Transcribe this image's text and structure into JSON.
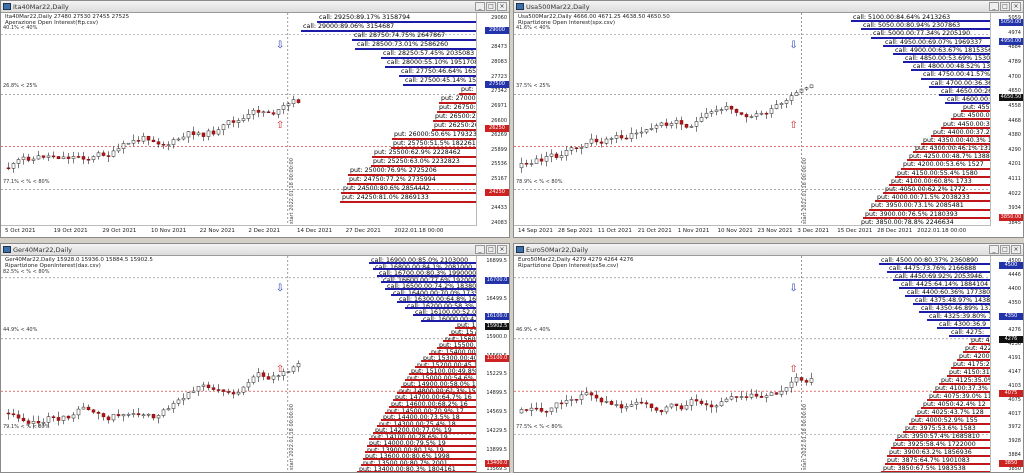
{
  "windows": [
    {
      "id": "ita",
      "title": "Ita40Mar22,Daily",
      "info_line1": "Ita40Mar22,Daily  27480 27530 27455 27525",
      "info_line2": "Aperazione Open Interest(ftp.csv)",
      "pct_top": "40.1% < 40%",
      "pct_mid": "26.8% < 25%",
      "pct_bot": "77.1% < % < 80%",
      "vlabel": "start 2022.01.18 00:00:00",
      "candle_seed": 11,
      "calls": [
        {
          "text": "call: 29250:89.17% 3158794",
          "w": 160
        },
        {
          "text": "call: 29000:89.06% 3154687",
          "w": 176
        },
        {
          "text": "call: 28750:74.75% 2647867",
          "w": 125
        },
        {
          "text": "call: 28500:73.01% 2586260",
          "w": 122
        },
        {
          "text": "call: 28250:57.45% 2035083",
          "w": 96
        },
        {
          "text": "call: 28000:55.10% 1951708",
          "w": 92
        },
        {
          "text": "call: 27750:46.64% 1652",
          "w": 78
        },
        {
          "text": "call: 27500:45.14% 1598",
          "w": 74
        }
      ],
      "puts": [
        {
          "text": "put: 27",
          "w": 18
        },
        {
          "text": "put: 27000:22.7",
          "w": 38
        },
        {
          "text": "put: 26750:23.49",
          "w": 40
        },
        {
          "text": "put: 26500:26.3%",
          "w": 44
        },
        {
          "text": "put: 26250:26.8%",
          "w": 45
        },
        {
          "text": "put: 26000:50.6% 1793237",
          "w": 85
        },
        {
          "text": "put: 25750:51.5% 1822619",
          "w": 86
        },
        {
          "text": "put: 25500:62.9% 2228462",
          "w": 105
        },
        {
          "text": "put: 25250:63.0% 2232823",
          "w": 106
        },
        {
          "text": "put: 25000:76.9% 2725206",
          "w": 129
        },
        {
          "text": "put: 24750:77.2% 2735994",
          "w": 130
        },
        {
          "text": "put: 24500:80.6% 2854442",
          "w": 136
        },
        {
          "text": "put: 24250:81.0% 2869133",
          "w": 137
        }
      ],
      "yticks": [
        "29060",
        "28864",
        "28473",
        "28083",
        "27723",
        "27342",
        "26971",
        "26600",
        "26269",
        "25899",
        "25536",
        "25167",
        "24793",
        "24433",
        "24083"
      ],
      "tags": [
        {
          "text": "29000",
          "cls": "blue",
          "pos": 0.07
        },
        {
          "text": "27500",
          "cls": "blue",
          "pos": 0.33
        },
        {
          "text": "26250",
          "cls": "red",
          "pos": 0.54
        },
        {
          "text": "24250",
          "cls": "red",
          "pos": 0.85
        }
      ],
      "xlabels": [
        "5 Oct 2021",
        "19 Oct 2021",
        "29 Oct 2021",
        "10 Nov 2021",
        "22 Nov 2021",
        "2 Dec 2021",
        "14 Dec 2021",
        "27 Dec 2021",
        "2022.01.18 00:00"
      ]
    },
    {
      "id": "usa",
      "title": "Usa500Mar22,Daily",
      "info_line1": "Usa500Mar22,Daily  4666.00 4671.25 4638.50 4650.50",
      "info_line2": "Ripartizione Open Interest(spx.csv)",
      "pct_top": "41.6% < 40%",
      "pct_mid": "37.5% < 25%",
      "pct_bot": "78.9% < % < 80%",
      "vlabel": "start 2022.01.18 00:00:00",
      "candle_seed": 23,
      "calls": [
        {
          "text": "call: 5100.00:84.64% 2413263",
          "w": 140
        },
        {
          "text": "call: 5050.00:80.94% 2307863",
          "w": 130
        },
        {
          "text": "call: 5000.00:77.34% 2205190",
          "w": 120
        },
        {
          "text": "call: 4950.00:69.07% 1969337",
          "w": 108
        },
        {
          "text": "call: 4900.00:63.67% 1815356",
          "w": 98
        },
        {
          "text": "call: 4850.00:53.69% 1530939",
          "w": 88
        },
        {
          "text": "call: 4800.00:48.52% 1383357",
          "w": 80
        },
        {
          "text": "call: 4750.00:41.57% 1184960",
          "w": 70
        },
        {
          "text": "call: 4700.00:36.36% 1036777",
          "w": 62
        },
        {
          "text": "call: 4650.00:26.02%",
          "w": 52
        },
        {
          "text": "call: 4600.00:27.08%",
          "w": 46
        }
      ],
      "puts": [
        {
          "text": "put: 4550",
          "w": 30
        },
        {
          "text": "put: 4500.00:2",
          "w": 40
        },
        {
          "text": "put: 4450.00:30",
          "w": 50
        },
        {
          "text": "put: 4400.00:37.2%",
          "w": 60
        },
        {
          "text": "put: 4350.00:40.3% 1151",
          "w": 70
        },
        {
          "text": "put: 4300.00:46.1% 1314",
          "w": 78
        },
        {
          "text": "put: 4250.00:48.7% 1388",
          "w": 84
        },
        {
          "text": "put: 4200.00:53.6% 1527",
          "w": 90
        },
        {
          "text": "put: 4150.00:55.4% 1580",
          "w": 96
        },
        {
          "text": "put: 4100.00:60.8% 1733",
          "w": 102
        },
        {
          "text": "put: 4050.00:62.2% 1772",
          "w": 108
        },
        {
          "text": "put: 4000.00:71.5% 2038233",
          "w": 116
        },
        {
          "text": "put: 3950.00:73.1% 2085481",
          "w": 122
        },
        {
          "text": "put: 3900.00:76.5% 2180393",
          "w": 128
        },
        {
          "text": "put: 3850.00:78.8% 2246634",
          "w": 132
        }
      ],
      "yticks": [
        "5059",
        "4974",
        "4884",
        "4789",
        "4700",
        "4650",
        "4558",
        "4468",
        "4380",
        "4290",
        "4201",
        "4111",
        "4022",
        "3934",
        "3845"
      ],
      "tags": [
        {
          "text": "5050.00",
          "cls": "blue",
          "pos": 0.03
        },
        {
          "text": "4950.00",
          "cls": "blue",
          "pos": 0.12
        },
        {
          "text": "4650.50",
          "cls": "black",
          "pos": 0.39
        },
        {
          "text": "3850.00",
          "cls": "red",
          "pos": 0.97
        }
      ],
      "xlabels": [
        "14 Sep 2021",
        "28 Sep 2021",
        "11 Oct 2021",
        "21 Oct 2021",
        "1 Nov 2021",
        "10 Nov 2021",
        "23 Nov 2021",
        "3 Dec 2021",
        "15 Dec 2021",
        "28 Dec 2021",
        "2022.01.18 00:00"
      ]
    },
    {
      "id": "ger",
      "title": "Ger40Mar22,Daily",
      "info_line1": "Ger40Mar22,Daily  15928.0 15936.0 15884.5 15902.5",
      "info_line2": "Ripartizione OpenInterest(dax.csv)",
      "pct_top": "82.5% < % < 80%",
      "pct_mid": "44.9% < 40%",
      "pct_bot": "79.1% < % < 80%",
      "vlabel": "start 2022.01.18 00:00:00",
      "candle_seed": 37,
      "calls": [
        {
          "text": "call: 16900.00:85.0% 2103000",
          "w": 108
        },
        {
          "text": "call: 16800.00:84.1% 2081000",
          "w": 104
        },
        {
          "text": "call: 16700.00:80.3% 1990000",
          "w": 100
        },
        {
          "text": "call: 16600.00:77.6% 1920000",
          "w": 96
        },
        {
          "text": "call: 16500.00:74.2% 1838000",
          "w": 92
        },
        {
          "text": "call: 16400.00:70.0% 1735000",
          "w": 86
        },
        {
          "text": "call: 16300.00:64.8% 1605000",
          "w": 80
        },
        {
          "text": "call: 16200.00:58.3% 1443000",
          "w": 72
        },
        {
          "text": "call: 16100.00:52.0% 1287000",
          "w": 64
        },
        {
          "text": "call: 16000.00:47.2%",
          "w": 56
        }
      ],
      "puts": [
        {
          "text": "put: 15800",
          "w": 22
        },
        {
          "text": "put: 15700.00:",
          "w": 28
        },
        {
          "text": "put: 15600.00:2",
          "w": 34
        },
        {
          "text": "put: 15500.00:30",
          "w": 40
        },
        {
          "text": "put: 15400.00:34.9",
          "w": 48
        },
        {
          "text": "put: 15300.00:40.2%",
          "w": 56
        },
        {
          "text": "put: 15200.00:45.1% 1",
          "w": 62
        },
        {
          "text": "put: 15100.00:49.8% 12",
          "w": 68
        },
        {
          "text": "put: 15000.00:54.6% 13",
          "w": 72
        },
        {
          "text": "put: 14900.00:58.0% 14",
          "w": 76
        },
        {
          "text": "put: 14800.00:61.3% 15",
          "w": 80
        },
        {
          "text": "put: 14700.00:64.7% 16",
          "w": 84
        },
        {
          "text": "put: 14600.00:68.2% 16",
          "w": 88
        },
        {
          "text": "put: 14500.00:70.9% 17",
          "w": 92
        },
        {
          "text": "put: 14400.00:73.5% 18",
          "w": 96
        },
        {
          "text": "put: 14300.00:75.4% 18",
          "w": 100
        },
        {
          "text": "put: 14200.00:77.0% 19",
          "w": 104
        },
        {
          "text": "put: 14100.00:78.6% 19",
          "w": 108
        },
        {
          "text": "put: 14000.00:79.5% 19",
          "w": 110
        },
        {
          "text": "put: 13900.00:80.1% 19",
          "w": 112
        },
        {
          "text": "put: 13600.00:80.6% 1998",
          "w": 114
        },
        {
          "text": "put: 13500.00:80.7% 2001",
          "w": 116
        },
        {
          "text": "put: 13400.00:80.3% 1804161",
          "w": 120
        }
      ],
      "yticks": [
        "16899.5",
        "16700.0",
        "16499.5",
        "16229.5",
        "15900.0",
        "15569.5",
        "15229.5",
        "14899.5",
        "14569.5",
        "14229.5",
        "13899.5",
        "13569.5"
      ],
      "tags": [
        {
          "text": "16700.0",
          "cls": "blue",
          "pos": 0.1
        },
        {
          "text": "16100.0",
          "cls": "blue",
          "pos": 0.27
        },
        {
          "text": "15902.5",
          "cls": "black",
          "pos": 0.32
        },
        {
          "text": "15100.0",
          "cls": "red",
          "pos": 0.47
        },
        {
          "text": "13400.0",
          "cls": "red",
          "pos": 0.97
        }
      ],
      "xlabels": []
    },
    {
      "id": "euro",
      "title": "Euro50Mar22,Daily",
      "info_line1": "Euro50Mar22,Daily  4279 4279 4264 4276",
      "info_line2": "Ripartizione Open Interest(sx5e.csv)",
      "pct_top": "",
      "pct_mid": "46.9% < 40%",
      "pct_bot": "77.5% < % < 80%",
      "vlabel": "start 2022.01.18 00:00:00",
      "candle_seed": 51,
      "calls": [
        {
          "text": "call: 4500.00:80.37% 2360890",
          "w": 112
        },
        {
          "text": "call: 4475:73.76% 2166888",
          "w": 104
        },
        {
          "text": "call: 4450:69.92% 2053946",
          "w": 98
        },
        {
          "text": "call: 4425:64.14% 1884104",
          "w": 92
        },
        {
          "text": "call: 4400:60.36% 1773805",
          "w": 86
        },
        {
          "text": "call: 4375:48.97% 1438",
          "w": 78
        },
        {
          "text": "call: 4350:46.89% 1377",
          "w": 72
        },
        {
          "text": "call: 4325:39.80% 1169",
          "w": 64
        },
        {
          "text": "call: 4300:36.9",
          "w": 54
        },
        {
          "text": "call: 4275:",
          "w": 42
        }
      ],
      "puts": [
        {
          "text": "put: 42",
          "w": 22
        },
        {
          "text": "put: 4225",
          "w": 28
        },
        {
          "text": "put: 4200:2",
          "w": 34
        },
        {
          "text": "put: 4175:29.",
          "w": 40
        },
        {
          "text": "put: 4150:31.5",
          "w": 44
        },
        {
          "text": "put: 4125:35.0% 1",
          "w": 52
        },
        {
          "text": "put: 4100:37.3% 1",
          "w": 58
        },
        {
          "text": "put: 4075:39.0% 11",
          "w": 64
        },
        {
          "text": "put: 4050:42.4% 12",
          "w": 70
        },
        {
          "text": "put: 4025:43.7% 128",
          "w": 76
        },
        {
          "text": "put: 4000:52.9% 155",
          "w": 82
        },
        {
          "text": "put: 3975:53.6% 1583",
          "w": 88
        },
        {
          "text": "put: 3950:57.4% 1685810",
          "w": 96
        },
        {
          "text": "put: 3925:58.4% 1722000",
          "w": 100
        },
        {
          "text": "put: 3900:63.2% 1856936",
          "w": 104
        },
        {
          "text": "put: 3875:64.7% 1901083",
          "w": 106
        },
        {
          "text": "put: 3850:67.5% 1983538",
          "w": 110
        }
      ],
      "yticks": [
        "4500",
        "4446",
        "4400",
        "4350",
        "4321",
        "4276",
        "4236",
        "4191",
        "4147",
        "4103",
        "4075",
        "4017",
        "3972",
        "3928",
        "3884",
        "3850"
      ],
      "tags": [
        {
          "text": "4500",
          "cls": "blue",
          "pos": 0.03
        },
        {
          "text": "4350",
          "cls": "blue",
          "pos": 0.27
        },
        {
          "text": "4276",
          "cls": "black",
          "pos": 0.38
        },
        {
          "text": "4075",
          "cls": "red",
          "pos": 0.64
        },
        {
          "text": "3850",
          "cls": "red",
          "pos": 0.97
        }
      ],
      "xlabels": []
    }
  ]
}
